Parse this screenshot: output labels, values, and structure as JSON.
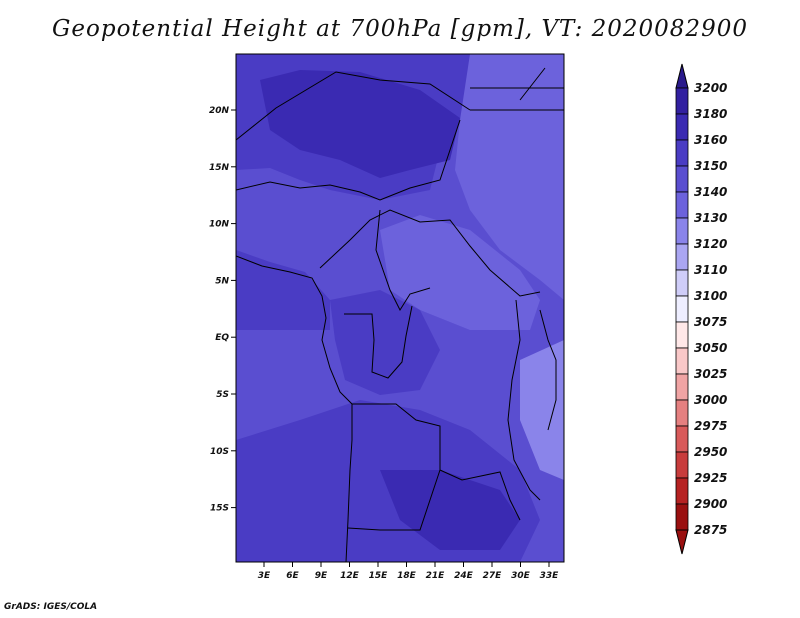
{
  "title": "Geopotential Height at 700hPa [gpm], VT: 2020082900",
  "footer": "GrADS: IGES/COLA",
  "map": {
    "lon_ticks": [
      "3E",
      "6E",
      "9E",
      "12E",
      "15E",
      "18E",
      "21E",
      "24E",
      "27E",
      "30E",
      "33E"
    ],
    "lat_ticks": [
      "20N",
      "15N",
      "10N",
      "5N",
      "EQ",
      "5S",
      "10S",
      "15S"
    ]
  },
  "colorbar": {
    "labels": [
      "3200",
      "3180",
      "3160",
      "3150",
      "3140",
      "3130",
      "3120",
      "3110",
      "3100",
      "3075",
      "3050",
      "3025",
      "3000",
      "2975",
      "2950",
      "2925",
      "2900",
      "2875"
    ],
    "colors": [
      "#2a1a8c",
      "#3220a0",
      "#3a2ab2",
      "#4a3cc4",
      "#5a4ed0",
      "#6c62dc",
      "#8a84ea",
      "#aaa6f2",
      "#cfcdf8",
      "#eeeeff",
      "#ffe8e8",
      "#f9c8c8",
      "#f0a4a4",
      "#e58080",
      "#d85a5a",
      "#c83c3c",
      "#b62222",
      "#9a1010"
    ],
    "top_arrow_color": "#2a1a8c",
    "bottom_arrow_color": "#9a1010"
  },
  "field_colors": {
    "h3160": "#3a2ab2",
    "h3150": "#4a3cc4",
    "h3140": "#5a4ed0",
    "h3130": "#6c62dc",
    "h3120": "#8a84ea"
  }
}
